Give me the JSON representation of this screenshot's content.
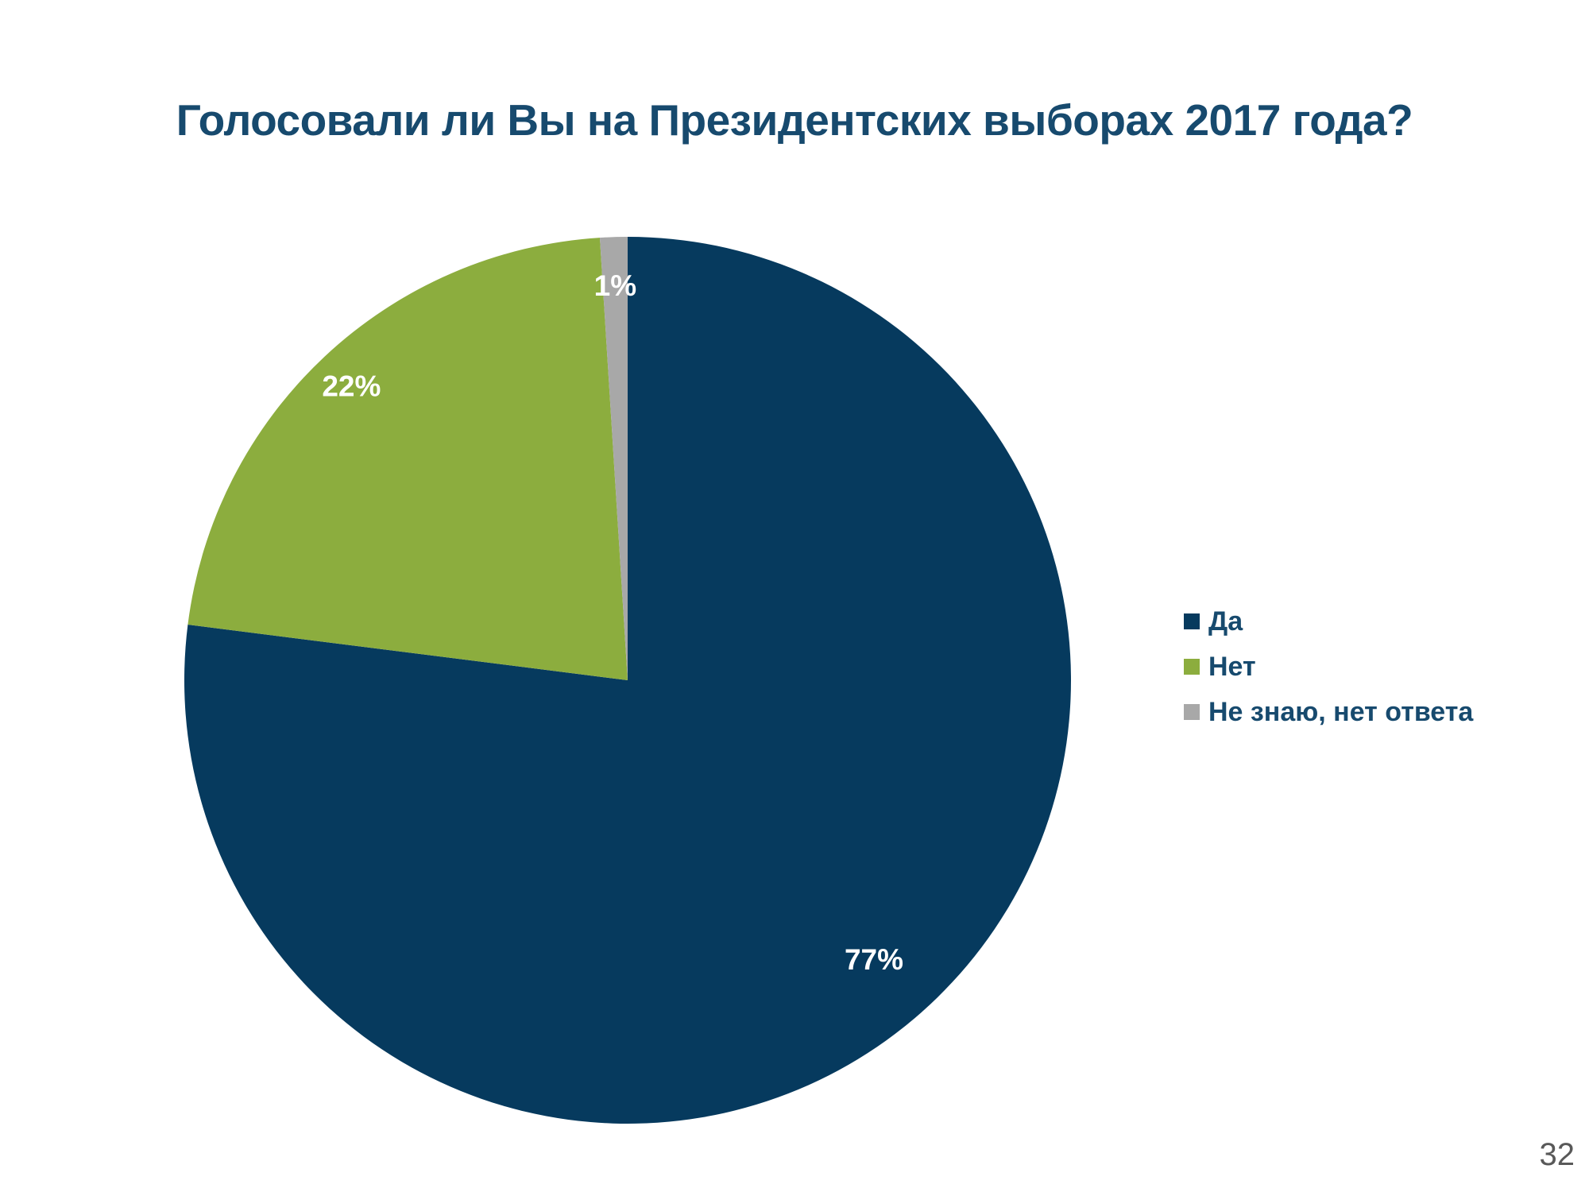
{
  "page": {
    "number": "32"
  },
  "title": {
    "text": "Голосовали ли Вы на Президентских выборах 2017 года?",
    "color": "#174a6e"
  },
  "chart_data": {
    "type": "pie",
    "title": "Голосовали ли Вы на Президентских выборах 2017 года?",
    "categories": [
      "Да",
      "Нет",
      "Не знаю, нет ответа"
    ],
    "values": [
      77,
      22,
      1
    ],
    "labels": [
      "77%",
      "22%",
      "1%"
    ],
    "colors": [
      "#063a5e",
      "#8cad3e",
      "#a8a8a8"
    ],
    "start_angle_deg": 0,
    "direction": "clockwise",
    "legend_position": "right",
    "label_color": "#ffffff",
    "label_radius": [
      0.84,
      0.91,
      0.89
    ]
  },
  "legend": {
    "items": [
      {
        "label": "Да",
        "color": "#063a5e"
      },
      {
        "label": "Нет",
        "color": "#8cad3e"
      },
      {
        "label": "Не знаю, нет ответа",
        "color": "#a8a8a8"
      }
    ]
  }
}
